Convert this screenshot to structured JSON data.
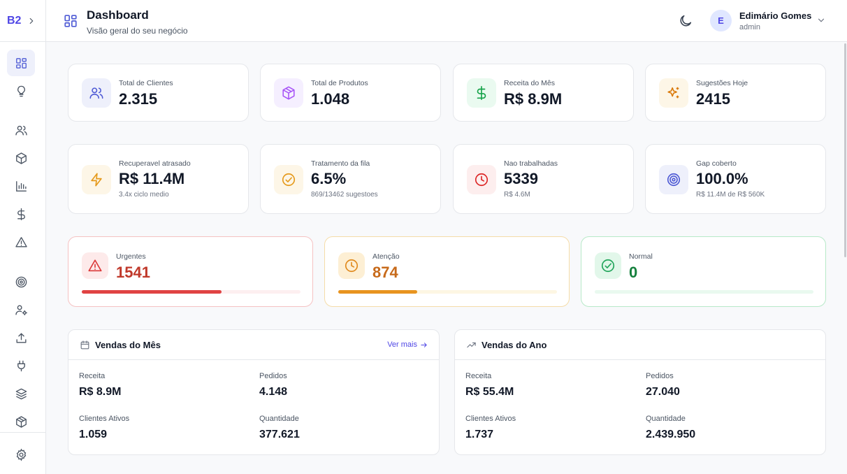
{
  "brand": {
    "label": "B2"
  },
  "header": {
    "title": "Dashboard",
    "subtitle": "Visão geral do seu negócio",
    "user": {
      "initial": "E",
      "name": "Edimário Gomes",
      "role": "admin"
    }
  },
  "sidebar": {
    "items": [
      {
        "name": "dashboard",
        "icon": "grid-icon",
        "active": true
      },
      {
        "name": "suggestions",
        "icon": "lightbulb-icon"
      },
      {
        "name": "clients",
        "icon": "users-icon"
      },
      {
        "name": "products",
        "icon": "box-icon"
      },
      {
        "name": "reports",
        "icon": "bar-chart-icon"
      },
      {
        "name": "finance",
        "icon": "dollar-icon"
      },
      {
        "name": "alerts",
        "icon": "alert-triangle-icon"
      },
      {
        "name": "goals",
        "icon": "target-icon"
      },
      {
        "name": "user-settings",
        "icon": "user-gear-icon"
      },
      {
        "name": "upload",
        "icon": "upload-icon"
      },
      {
        "name": "integrations",
        "icon": "plug-icon"
      },
      {
        "name": "layers",
        "icon": "layers-icon"
      },
      {
        "name": "packages",
        "icon": "package-icon"
      },
      {
        "name": "settings",
        "icon": "gear-icon"
      }
    ]
  },
  "stats_row1": [
    {
      "label": "Total de Clientes",
      "value": "2.315",
      "icon": "users-icon",
      "color": "#4f5bd5",
      "bg": "#eef0fb"
    },
    {
      "label": "Total de Produtos",
      "value": "1.048",
      "icon": "box-icon",
      "color": "#a855f7",
      "bg": "#f5efff"
    },
    {
      "label": "Receita do Mês",
      "value": "R$ 8.9M",
      "icon": "dollar-icon",
      "color": "#16a34a",
      "bg": "#eafaf0"
    },
    {
      "label": "Sugestões Hoje",
      "value": "2415",
      "icon": "sparkles-icon",
      "color": "#d97706",
      "bg": "#fdf6e7"
    }
  ],
  "stats_row2": [
    {
      "label": "Recuperavel atrasado",
      "value": "R$ 11.4M",
      "sub": "3.4x ciclo medio",
      "icon": "zap-icon",
      "color": "#e59a1c",
      "bg": "#fdf6e7"
    },
    {
      "label": "Tratamento da fila",
      "value": "6.5%",
      "sub": "869/13462 sugestoes",
      "icon": "check-circle-icon",
      "color": "#e59a1c",
      "bg": "#fdf6e7"
    },
    {
      "label": "Nao trabalhadas",
      "value": "5339",
      "sub": "R$ 4.6M",
      "icon": "clock-icon",
      "color": "#dc2626",
      "bg": "#fdeeee"
    },
    {
      "label": "Gap coberto",
      "value": "100.0%",
      "sub": "R$ 11.4M de R$ 560K",
      "icon": "target-icon",
      "color": "#4f5bd5",
      "bg": "#eef0fb"
    }
  ],
  "priority": [
    {
      "label": "Urgentes",
      "value": "1541",
      "icon": "alert-triangle-icon",
      "color": "#dc3b3b",
      "value_color": "#c0392b",
      "bg": "#fdeaea",
      "border": "#f5c2c2",
      "track": "#fdeff0",
      "fill": 0.64
    },
    {
      "label": "Atenção",
      "value": "874",
      "icon": "clock-icon",
      "color": "#e08a1e",
      "value_color": "#c76a1a",
      "bg": "#fdefd4",
      "border": "#f5dca8",
      "track": "#fdf6e3",
      "fill": 0.36
    },
    {
      "label": "Normal",
      "value": "0",
      "icon": "check-circle-icon",
      "color": "#22a55b",
      "value_color": "#15803d",
      "bg": "#e2f7ea",
      "border": "#b7e9c8",
      "track": "#e9f9ef",
      "fill": 0
    }
  ],
  "sales_month": {
    "title": "Vendas do Mês",
    "see_more": "Ver mais",
    "metrics": [
      {
        "label": "Receita",
        "value": "R$ 8.9M"
      },
      {
        "label": "Pedidos",
        "value": "4.148"
      },
      {
        "label": "Clientes Ativos",
        "value": "1.059"
      },
      {
        "label": "Quantidade",
        "value": "377.621"
      }
    ]
  },
  "sales_year": {
    "title": "Vendas do Ano",
    "metrics": [
      {
        "label": "Receita",
        "value": "R$ 55.4M"
      },
      {
        "label": "Pedidos",
        "value": "27.040"
      },
      {
        "label": "Clientes Ativos",
        "value": "1.737"
      },
      {
        "label": "Quantidade",
        "value": "2.439.950"
      }
    ]
  }
}
